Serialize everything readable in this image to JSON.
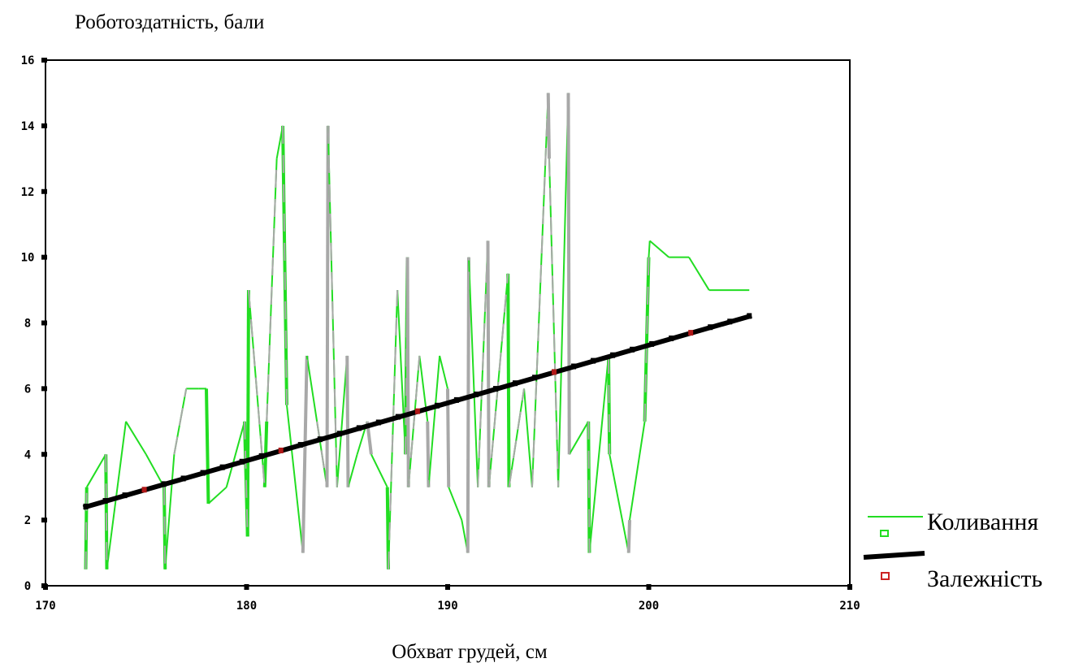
{
  "chart_data": {
    "type": "line",
    "ylabel": "Роботоздатність, бали",
    "xlabel": "Обхват грудей, см",
    "xlim": [
      170,
      210
    ],
    "ylim": [
      0,
      16
    ],
    "x_ticks": [
      "170",
      "180",
      "190",
      "200",
      "210"
    ],
    "y_ticks": [
      "0",
      "2",
      "4",
      "6",
      "8",
      "10",
      "12",
      "14",
      "16"
    ],
    "grid": false,
    "legend_position": "bottom-right",
    "series": [
      {
        "name": "Коливання",
        "color": "#22dd22",
        "secondary_color": "#a8a8a8",
        "x": [
          172,
          172.05,
          173,
          173.05,
          174,
          175,
          175.9,
          175.95,
          176.4,
          177,
          177.6,
          178,
          178.1,
          179,
          179.9,
          180.05,
          180.1,
          180.9,
          181.0,
          181.5,
          181.8,
          182,
          182.8,
          183,
          183.5,
          184,
          184.05,
          184.5,
          185,
          185.05,
          185.5,
          186,
          186.2,
          187,
          187.05,
          187.5,
          187.9,
          188,
          188.05,
          188.6,
          189,
          189.05,
          189.6,
          190,
          190.05,
          190.7,
          191,
          191.05,
          191.5,
          192,
          192.05,
          193,
          193.05,
          193.8,
          194.2,
          195,
          195.05,
          195.5,
          196,
          196.05,
          197,
          197.05,
          198,
          198.05,
          199,
          199.05,
          199.8,
          200,
          200.05,
          201,
          202,
          203,
          205
        ],
        "values": [
          0.5,
          3,
          4,
          0.5,
          5,
          4,
          3,
          0.5,
          4,
          6,
          6,
          6,
          2.5,
          3,
          5,
          1.5,
          9,
          3,
          5,
          13,
          14,
          5.5,
          1,
          7,
          5,
          3,
          14,
          3,
          7,
          3,
          4,
          5,
          4,
          3,
          0.5,
          9,
          4,
          10,
          3,
          7,
          5,
          3,
          7,
          6,
          3,
          2,
          1,
          10,
          3,
          10.5,
          3,
          9.5,
          3,
          6,
          3,
          15,
          13,
          3,
          15,
          4,
          5,
          1,
          7,
          4,
          1,
          2,
          5,
          10,
          10.5,
          10,
          10,
          9,
          9
        ]
      },
      {
        "name": "Залежність",
        "color": "#000000",
        "x": [
          172,
          205
        ],
        "values": [
          2.4,
          8.2
        ]
      }
    ]
  }
}
